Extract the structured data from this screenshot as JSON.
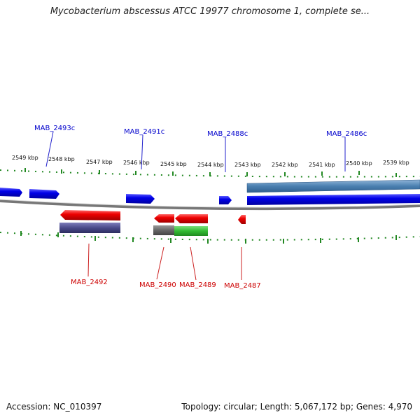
{
  "title": "Mycobacterium abscessus ATCC 19977 chromosome 1, complete se...",
  "footer": {
    "accession": "Accession: NC_010397",
    "summary": "Topology: circular; Length: 5,067,172 bp; Genes: 4,970"
  },
  "colors": {
    "forward_gene": "#0000e0",
    "reverse_gene": "#e00000",
    "forward_label": "#0000cc",
    "reverse_label": "#cc0000",
    "tick": "#228822",
    "backbone": "#888888",
    "cds_forward": "#4a7fb0",
    "cds_reverse_a": "#4a4a8a",
    "cds_reverse_b": "#666666",
    "cds_reverse_c": "#33bb33"
  },
  "ruler": {
    "ticks": [
      "2549 kbp",
      "2548 kbp",
      "2547 kbp",
      "2546 kbp",
      "2545 kbp",
      "2544 kbp",
      "2543 kbp",
      "2542 kbp",
      "2541 kbp",
      "2540 kbp",
      "2539 kbp"
    ]
  },
  "top_labels": [
    "MAB_2493c",
    "MAB_2491c",
    "MAB_2488c",
    "MAB_2486c"
  ],
  "bottom_labels": [
    "MAB_2492",
    "MAB_2490",
    "MAB_2489",
    "MAB_2487"
  ]
}
